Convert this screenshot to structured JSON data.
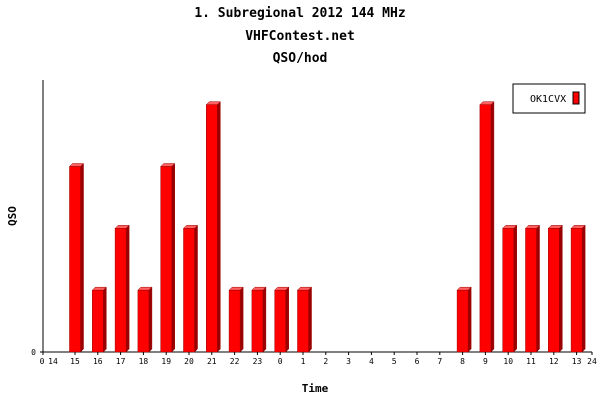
{
  "colors": {
    "bar": "#ff0000",
    "bar_side": "#9a0000",
    "bar_top": "#ff6060",
    "axis": "#000000"
  },
  "chart_data": {
    "type": "bar",
    "title": "1. Subregional 2012 144 MHz",
    "subtitle": "VHFContest.net",
    "subtitle2": "QSO/hod",
    "xlabel": "Time",
    "ylabel": "QSO",
    "x_start_label": "14",
    "x_end_label": "24",
    "y_tick_label": "0",
    "categories": [
      "15",
      "16",
      "17",
      "18",
      "19",
      "20",
      "21",
      "22",
      "23",
      "0",
      "1",
      "2",
      "3",
      "4",
      "5",
      "6",
      "7",
      "8",
      "9",
      "10",
      "11",
      "12",
      "13"
    ],
    "series": [
      {
        "name": "OK1CVX",
        "values": [
          3,
          1,
          2,
          1,
          3,
          2,
          4,
          1,
          1,
          1,
          1,
          0,
          0,
          0,
          0,
          0,
          0,
          1,
          4,
          2,
          2,
          2,
          2
        ]
      }
    ],
    "ylim": [
      0,
      4.4
    ],
    "grid": false,
    "legend": "top-right"
  }
}
